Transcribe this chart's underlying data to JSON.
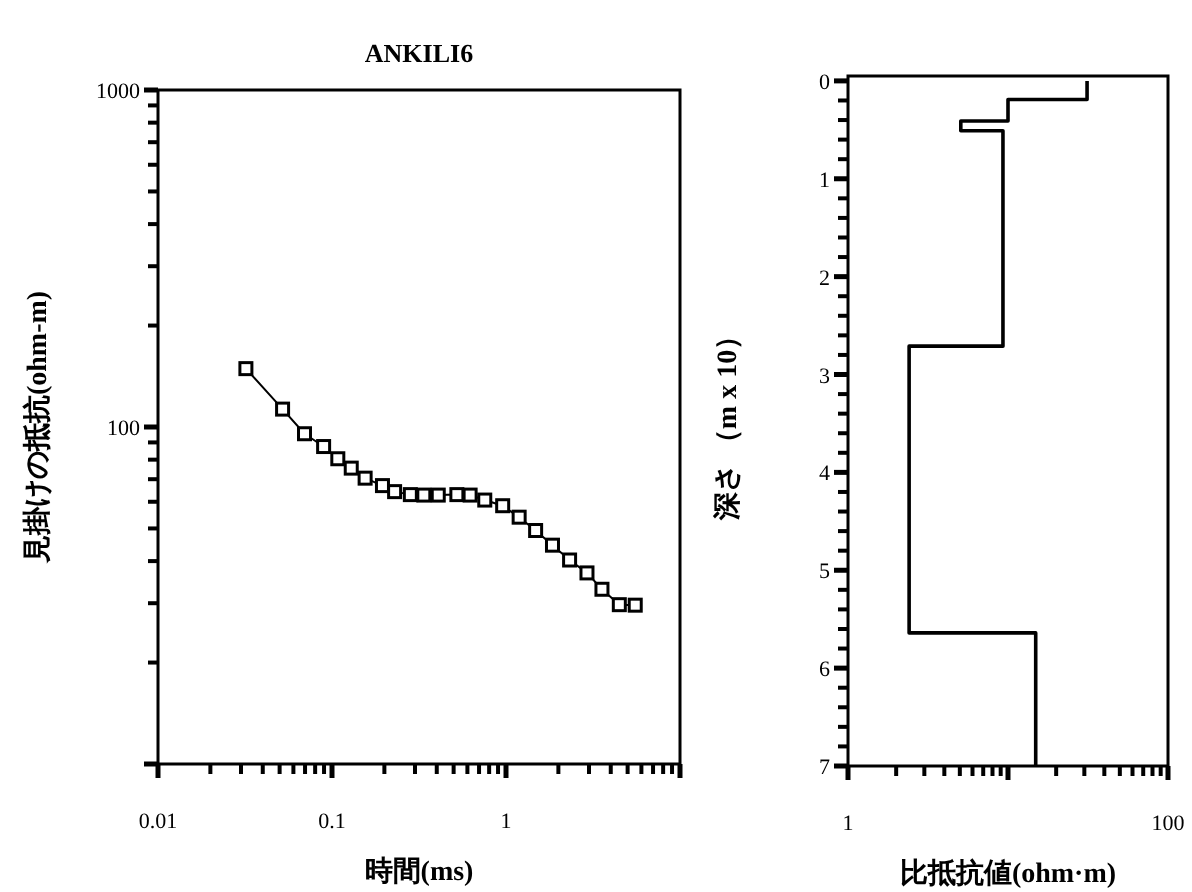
{
  "chart_data": [
    {
      "type": "line",
      "title": "ANKILI6",
      "xlabel": "時間(ms)",
      "ylabel": "見掛けの抵抗(ohm-m)",
      "log": "xy",
      "marker": "square",
      "line_style": "solid",
      "grid": false,
      "xlim": [
        0.01,
        10
      ],
      "xticks": [
        0.01,
        0.1,
        1,
        {
          "value": 10,
          "label": null
        }
      ],
      "ylim": [
        10,
        1000
      ],
      "yticks": [
        {
          "value": 10,
          "label": null
        },
        100,
        1000
      ],
      "series": [
        {
          "color": "#000000",
          "x": [
            0.032,
            0.052,
            0.0695,
            0.0895,
            0.108,
            0.129,
            0.155,
            0.195,
            0.229,
            0.282,
            0.337,
            0.408,
            0.522,
            0.622,
            0.755,
            0.957,
            1.19,
            1.48,
            1.85,
            2.32,
            2.92,
            3.56,
            4.48,
            5.53
          ],
          "values": [
            149,
            113,
            95.5,
            87.5,
            80.5,
            75.5,
            70.5,
            67,
            64.3,
            63,
            62.8,
            62.8,
            63,
            62.8,
            60.7,
            58.4,
            54,
            49.3,
            44.6,
            40.3,
            36.9,
            33,
            29.7,
            29.6
          ]
        }
      ]
    },
    {
      "type": "step",
      "orientation": "horizontal",
      "xlabel": "比抵抗値(ohm·m)",
      "ylabel": "深さ （m x 10）",
      "log": "x",
      "grid": false,
      "xlim": [
        1,
        100
      ],
      "xticks": [
        1,
        {
          "value": 10,
          "label": null
        },
        100
      ],
      "ylim": [
        7,
        -0.05
      ],
      "yticks": [
        0,
        1,
        2,
        3,
        4,
        5,
        6,
        7
      ],
      "series": [
        {
          "color": "#000000",
          "x": [
            0,
            0.19,
            0.41,
            0.51,
            2.71,
            5.64,
            7
          ],
          "values": [
            31.2,
            10,
            5.07,
            9.3,
            2.41,
            14.9,
            14.9
          ]
        }
      ]
    }
  ]
}
